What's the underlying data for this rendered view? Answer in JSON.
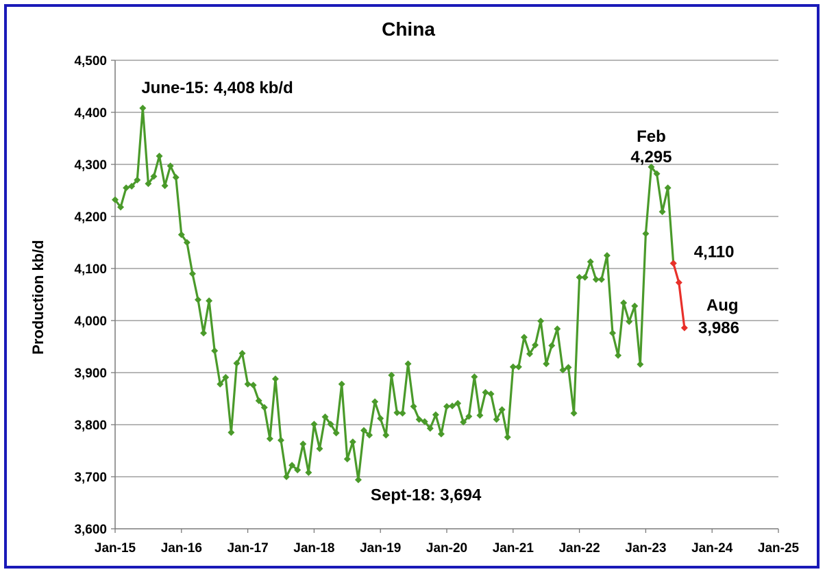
{
  "chart_data": {
    "type": "line",
    "title": "China",
    "xlabel": "",
    "ylabel": "Production kb/d",
    "ylim": [
      3600,
      4500
    ],
    "yticks": [
      3600,
      3700,
      3800,
      3900,
      4000,
      4100,
      4200,
      4300,
      4400,
      4500
    ],
    "ytick_labels": [
      "3,600",
      "3,700",
      "3,800",
      "3,900",
      "4,000",
      "4,100",
      "4,200",
      "4,300",
      "4,400",
      "4,500"
    ],
    "xlim": [
      "2015-01",
      "2025-01"
    ],
    "xtick_labels": [
      "Jan-15",
      "Jan-16",
      "Jan-17",
      "Jan-18",
      "Jan-19",
      "Jan-20",
      "Jan-21",
      "Jan-22",
      "Jan-23",
      "Jan-24",
      "Jan-25"
    ],
    "grid": "horizontal",
    "legend": "none",
    "series": [
      {
        "color": "#4a9a2a",
        "marker": "diamond",
        "x": [
          "2015-01",
          "2015-02",
          "2015-03",
          "2015-04",
          "2015-05",
          "2015-06",
          "2015-07",
          "2015-08",
          "2015-09",
          "2015-10",
          "2015-11",
          "2015-12",
          "2016-01",
          "2016-02",
          "2016-03",
          "2016-04",
          "2016-05",
          "2016-06",
          "2016-07",
          "2016-08",
          "2016-09",
          "2016-10",
          "2016-11",
          "2016-12",
          "2017-01",
          "2017-02",
          "2017-03",
          "2017-04",
          "2017-05",
          "2017-06",
          "2017-07",
          "2017-08",
          "2017-09",
          "2017-10",
          "2017-11",
          "2017-12",
          "2018-01",
          "2018-02",
          "2018-03",
          "2018-04",
          "2018-05",
          "2018-06",
          "2018-07",
          "2018-08",
          "2018-09",
          "2018-10",
          "2018-11",
          "2018-12",
          "2019-01",
          "2019-02",
          "2019-03",
          "2019-04",
          "2019-05",
          "2019-06",
          "2019-07",
          "2019-08",
          "2019-09",
          "2019-10",
          "2019-11",
          "2019-12",
          "2020-01",
          "2020-02",
          "2020-03",
          "2020-04",
          "2020-05",
          "2020-06",
          "2020-07",
          "2020-08",
          "2020-09",
          "2020-10",
          "2020-11",
          "2020-12",
          "2021-01",
          "2021-02",
          "2021-03",
          "2021-04",
          "2021-05",
          "2021-06",
          "2021-07",
          "2021-08",
          "2021-09",
          "2021-10",
          "2021-11",
          "2021-12",
          "2022-01",
          "2022-02",
          "2022-03",
          "2022-04",
          "2022-05",
          "2022-06",
          "2022-07",
          "2022-08",
          "2022-09",
          "2022-10",
          "2022-11",
          "2022-12",
          "2023-01",
          "2023-02",
          "2023-03",
          "2023-04",
          "2023-05",
          "2023-06"
        ],
        "values": [
          4232,
          4218,
          4255,
          4258,
          4270,
          4408,
          4263,
          4277,
          4316,
          4259,
          4297,
          4275,
          4165,
          4150,
          4090,
          4040,
          3976,
          4038,
          3942,
          3878,
          3891,
          3785,
          3918,
          3937,
          3878,
          3876,
          3846,
          3833,
          3773,
          3888,
          3770,
          3700,
          3722,
          3713,
          3763,
          3708,
          3801,
          3754,
          3815,
          3801,
          3784,
          3878,
          3734,
          3767,
          3694,
          3789,
          3780,
          3844,
          3812,
          3780,
          3895,
          3823,
          3822,
          3917,
          3835,
          3810,
          3806,
          3793,
          3819,
          3782,
          3835,
          3836,
          3841,
          3805,
          3816,
          3892,
          3818,
          3862,
          3859,
          3810,
          3829,
          3776,
          3911,
          3911,
          3968,
          3936,
          3953,
          3999,
          3917,
          3952,
          3984,
          3905,
          3910,
          3822,
          4083,
          4083,
          4113,
          4079,
          4079,
          4125,
          3976,
          3933,
          4034,
          3998,
          4028,
          3916,
          4167,
          4295,
          4282,
          4209,
          4255,
          4110
        ]
      },
      {
        "color": "#e8302a",
        "marker": "diamond",
        "x": [
          "2023-06",
          "2023-07",
          "2023-08"
        ],
        "values": [
          4110,
          4073,
          3986
        ]
      }
    ],
    "annotations": [
      {
        "text": "June-15: 4,408 kb/d",
        "x": "2015-06",
        "y": 4408
      },
      {
        "text": "Sept-18: 3,694",
        "x": "2018-09",
        "y": 3694
      },
      {
        "text": "Feb",
        "x": "2023-02",
        "y": 4295
      },
      {
        "text": "4,295",
        "x": "2023-02",
        "y": 4295
      },
      {
        "text": "4,110",
        "x": "2023-06",
        "y": 4110
      },
      {
        "text": "Aug",
        "x": "2023-08",
        "y": 3986
      },
      {
        "text": "3,986",
        "x": "2023-08",
        "y": 3986
      }
    ]
  }
}
